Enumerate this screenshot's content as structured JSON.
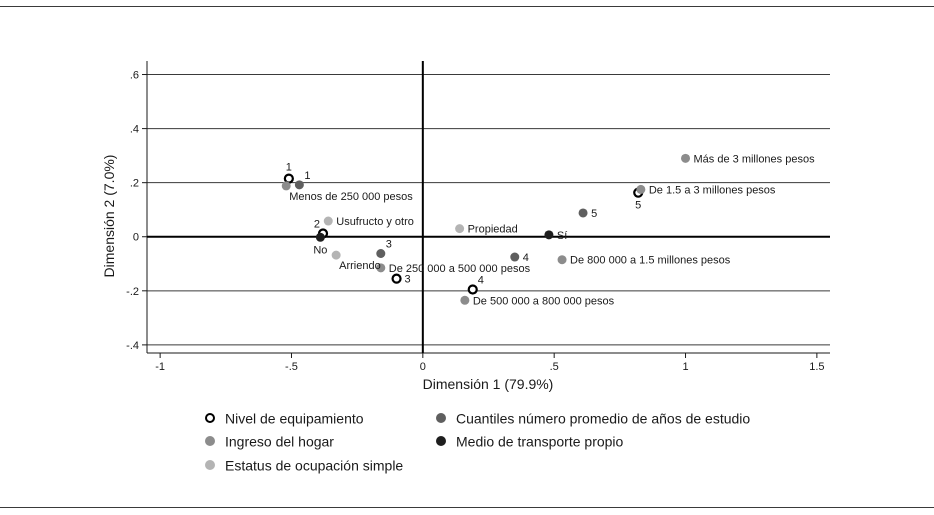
{
  "chart_data": {
    "type": "scatter",
    "xlabel": "Dimensión 1 (79.9%)",
    "ylabel": "Dimensión 2 (7.0%)",
    "xlim": [
      -1.05,
      1.55
    ],
    "ylim": [
      -0.43,
      0.65
    ],
    "xticks": [
      -1,
      -0.5,
      0,
      0.5,
      1,
      1.5
    ],
    "xtick_labels": [
      "-1",
      "-.5",
      "0",
      ".5",
      "1",
      "1.5"
    ],
    "yticks": [
      -0.4,
      -0.2,
      0,
      0.2,
      0.4,
      0.6
    ],
    "ytick_labels": [
      "-.4",
      "-.2",
      "0",
      ".2",
      ".4",
      ".6"
    ],
    "grid": "horizontal",
    "colors": {
      "equip": "#000000",
      "ingreso": "#8c8c8c",
      "ocupacion": "#b4b4b4",
      "estudio": "#5f5f5f",
      "transporte": "#1e1e1e"
    },
    "series": [
      {
        "name": "Nivel de equipamiento",
        "key": "equip",
        "marker": "hollow",
        "points": [
          {
            "x": -0.51,
            "y": 0.215,
            "label": "1",
            "pos": "above"
          },
          {
            "x": -0.38,
            "y": 0.012,
            "label": "2",
            "pos": "upleft"
          },
          {
            "x": -0.1,
            "y": -0.155,
            "label": "3",
            "pos": "right"
          },
          {
            "x": 0.19,
            "y": -0.195,
            "label": "4",
            "pos": "upright"
          },
          {
            "x": 0.82,
            "y": 0.163,
            "label": "5",
            "pos": "below"
          }
        ]
      },
      {
        "name": "Ingreso del hogar",
        "key": "ingreso",
        "marker": "solid",
        "points": [
          {
            "x": -0.52,
            "y": 0.188,
            "label": "Menos de 250 000 pesos",
            "pos": "belowright"
          },
          {
            "x": -0.16,
            "y": -0.115,
            "label": "De 250 000 a 500 000 pesos",
            "pos": "right"
          },
          {
            "x": 0.16,
            "y": -0.235,
            "label": "De 500 000 a 800 000 pesos",
            "pos": "right"
          },
          {
            "x": 0.53,
            "y": -0.085,
            "label": "De 800 000 a 1.5 millones pesos",
            "pos": "right"
          },
          {
            "x": 0.83,
            "y": 0.175,
            "label": "De 1.5 a 3 millones pesos",
            "pos": "right"
          },
          {
            "x": 1.0,
            "y": 0.29,
            "label": "Más de 3 millones pesos",
            "pos": "right"
          }
        ]
      },
      {
        "name": "Estatus de ocupación simple",
        "key": "ocupacion",
        "marker": "solid",
        "points": [
          {
            "x": -0.36,
            "y": 0.058,
            "label": "Usufructo y otro",
            "pos": "right"
          },
          {
            "x": -0.33,
            "y": -0.068,
            "label": "Arriendo",
            "pos": "belowright"
          },
          {
            "x": 0.14,
            "y": 0.03,
            "label": "Propiedad",
            "pos": "right"
          }
        ]
      },
      {
        "name": "Cuantiles número promedio de años de estudio",
        "key": "estudio",
        "marker": "solid",
        "points": [
          {
            "x": -0.47,
            "y": 0.192,
            "label": "1",
            "pos": "upright"
          },
          {
            "x": -0.16,
            "y": -0.062,
            "label": "3",
            "pos": "upright"
          },
          {
            "x": 0.35,
            "y": -0.075,
            "label": "4",
            "pos": "right"
          },
          {
            "x": 0.61,
            "y": 0.088,
            "label": "5",
            "pos": "right"
          }
        ]
      },
      {
        "name": "Medio de transporte propio",
        "key": "transporte",
        "marker": "solid",
        "points": [
          {
            "x": -0.39,
            "y": -0.002,
            "label": "No",
            "pos": "below"
          },
          {
            "x": 0.48,
            "y": 0.007,
            "label": "Sí",
            "pos": "right"
          }
        ]
      }
    ]
  },
  "legend": [
    {
      "label": "Nivel de equipamiento",
      "key": "equip",
      "marker": "hollow"
    },
    {
      "label": "Cuantiles número promedio de años de estudio",
      "key": "estudio",
      "marker": "solid"
    },
    {
      "label": "Ingreso del hogar",
      "key": "ingreso",
      "marker": "solid"
    },
    {
      "label": "Medio de transporte propio",
      "key": "transporte",
      "marker": "solid"
    },
    {
      "label": "Estatus de ocupación simple",
      "key": "ocupacion",
      "marker": "solid"
    }
  ]
}
